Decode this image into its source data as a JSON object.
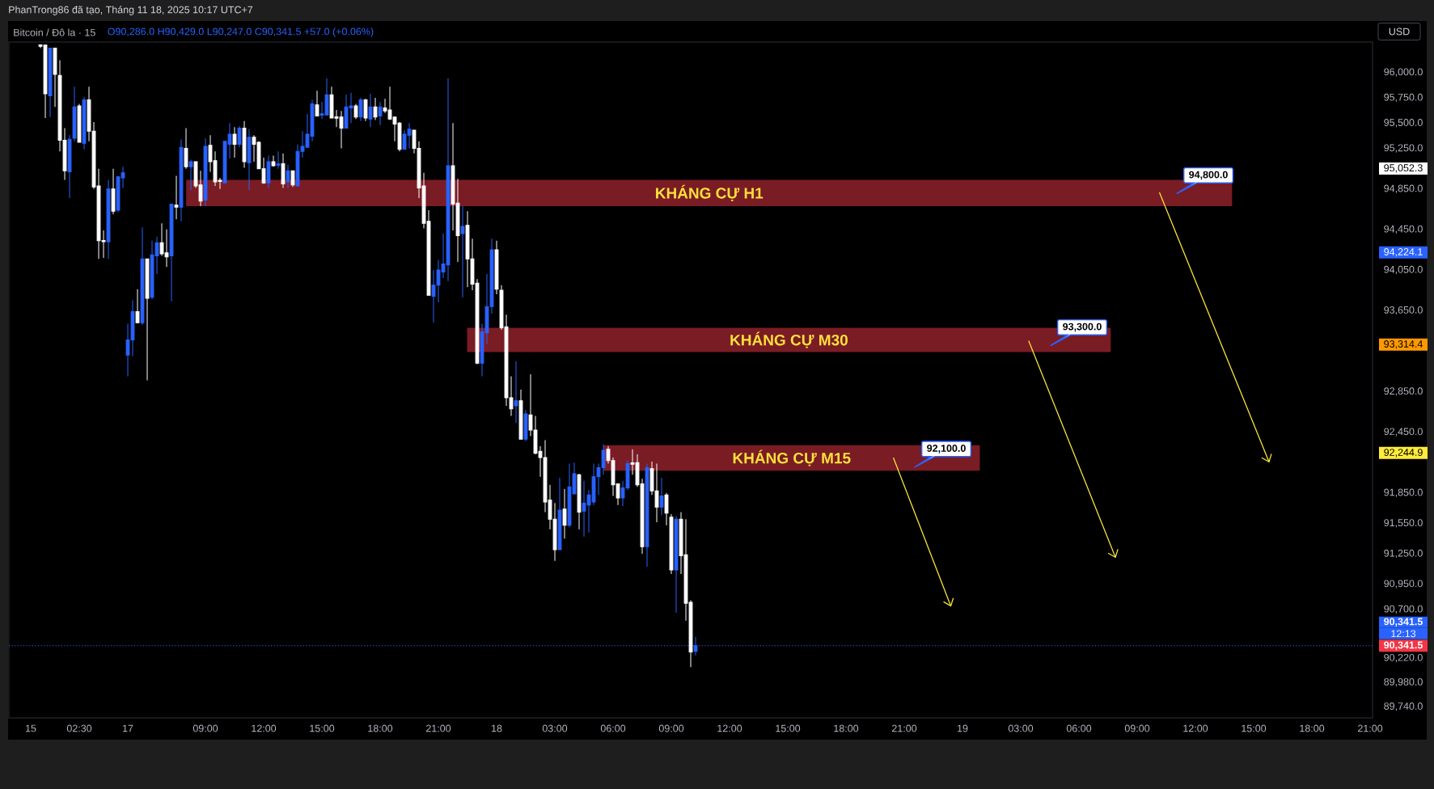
{
  "chart_data": {
    "type": "candlestick",
    "title": "Bitcoin / Đô la · 15",
    "subtitle": "O90,286.0 H90,429.0 L90,247.0 C90,341.5 +57.0 (+0.06%)",
    "annotations": [
      "PhanTrong86 đã tạo, Tháng 11 18, 2025 10:17 UTC+7",
      "USD",
      "95,052.3",
      "94,224.1",
      "93,314.4",
      "92,244.9",
      "12:13",
      "90,341.5",
      "94,800.0",
      "93,300.0",
      "92,100.0"
    ],
    "categories": [
      null,
      null,
      null,
      null,
      "15",
      null,
      null,
      null,
      null,
      null,
      null,
      null,
      null,
      null,
      "02:30",
      null,
      null,
      null,
      null,
      null,
      null,
      null,
      null,
      null,
      "17",
      null,
      null,
      null,
      null,
      null,
      null,
      null,
      null,
      null,
      null,
      null,
      null,
      null,
      null,
      null,
      "09:00",
      null,
      null,
      null,
      null,
      null,
      null,
      null,
      null,
      null,
      null,
      null,
      "12:00",
      null,
      null,
      null,
      null,
      null,
      null,
      null,
      null,
      null,
      null,
      null,
      "15:00",
      null,
      null,
      null,
      null,
      null,
      null,
      null,
      null,
      null,
      null,
      null,
      "18:00",
      null,
      null,
      null,
      null,
      null,
      null,
      null,
      null,
      null,
      null,
      null,
      "21:00",
      null,
      null,
      null,
      null,
      null,
      null,
      null,
      null,
      null,
      null,
      null,
      "18",
      null,
      null,
      null,
      null,
      null,
      null,
      null,
      null,
      null,
      null,
      null,
      "03:00",
      null,
      null,
      null,
      null,
      null,
      null,
      null,
      null,
      null,
      null,
      null,
      "06:00",
      null,
      null,
      null,
      null,
      null,
      null,
      null,
      null,
      null,
      null,
      null,
      "09:00",
      null,
      null,
      null,
      null,
      null,
      null,
      null,
      null,
      null,
      null,
      null,
      "12:00",
      null,
      null,
      null,
      null,
      null,
      null,
      null,
      null,
      null,
      null,
      null,
      "15:00",
      null,
      null,
      null,
      null,
      null,
      null,
      null,
      null,
      null,
      null,
      null,
      "18:00",
      null,
      null,
      null,
      null,
      null,
      null,
      null,
      null,
      null,
      null,
      null,
      "21:00",
      null,
      null,
      null,
      null,
      null,
      null,
      null,
      null,
      null,
      null,
      null,
      "19",
      null,
      null,
      null,
      null,
      null,
      null,
      null,
      null,
      null,
      null,
      null,
      "03:00",
      null,
      null,
      null,
      null,
      null,
      null,
      null,
      null,
      null,
      null,
      null,
      "06:00",
      null,
      null,
      null,
      null,
      null,
      null,
      null,
      null,
      null,
      null,
      null,
      "09:00",
      null,
      null,
      null,
      null,
      null,
      null,
      null,
      null,
      null,
      null,
      null,
      "12:00",
      null,
      null,
      null,
      null,
      null,
      null,
      null,
      null,
      null,
      null,
      null,
      "15:00",
      null,
      null,
      null,
      null,
      null,
      null,
      null,
      null,
      null,
      null,
      null,
      "18:00",
      null,
      null,
      null,
      null,
      null,
      null,
      null,
      null,
      null,
      null,
      null,
      "21:00"
    ],
    "ohlc": [
      null,
      null,
      null,
      null,
      null,
      null,
      [
        96270,
        96270,
        96240,
        96260
      ],
      [
        96270,
        96270,
        95550,
        95790
      ],
      [
        95770,
        96240,
        95560,
        96240
      ],
      [
        96240,
        96240,
        95660,
        95980
      ],
      [
        95970,
        96120,
        95220,
        95330
      ],
      [
        95330,
        95450,
        94940,
        95030
      ],
      [
        95020,
        95380,
        94760,
        95340
      ],
      [
        95350,
        95860,
        95320,
        95660
      ],
      [
        95670,
        95690,
        95310,
        95310
      ],
      [
        95300,
        95760,
        95240,
        95730
      ],
      [
        95730,
        95860,
        95320,
        95420
      ],
      [
        95420,
        95510,
        94850,
        94870
      ],
      [
        94880,
        95050,
        94160,
        94340
      ],
      [
        94340,
        94440,
        94170,
        94330
      ],
      [
        94330,
        94940,
        94160,
        94850
      ],
      [
        94850,
        95050,
        94600,
        94630
      ],
      [
        94640,
        94980,
        94620,
        94970
      ],
      [
        94960,
        95070,
        94860,
        95010
      ],
      [
        93210,
        93520,
        93000,
        93360
      ],
      [
        93360,
        93750,
        93200,
        93640
      ],
      [
        93640,
        93860,
        93530,
        93530
      ],
      [
        93530,
        94470,
        93510,
        94160
      ],
      [
        94160,
        94160,
        92960,
        93770
      ],
      [
        93780,
        94340,
        93760,
        94200
      ],
      [
        94190,
        94380,
        94010,
        94320
      ],
      [
        94320,
        94510,
        94190,
        94210
      ],
      [
        94220,
        94450,
        94080,
        94180
      ],
      [
        94190,
        94700,
        93740,
        94700
      ],
      [
        94690,
        94980,
        94550,
        94670
      ],
      [
        94670,
        95340,
        94530,
        95260
      ],
      [
        95250,
        95450,
        95050,
        95070
      ],
      [
        95070,
        95140,
        94840,
        95120
      ],
      [
        95120,
        95120,
        94860,
        94880
      ],
      [
        94890,
        95030,
        94680,
        94730
      ],
      [
        94740,
        95350,
        94680,
        95270
      ],
      [
        95280,
        95380,
        95020,
        95120
      ],
      [
        95130,
        95220,
        94880,
        94920
      ],
      [
        94930,
        94960,
        94850,
        94930
      ],
      [
        94910,
        95320,
        94910,
        95320
      ],
      [
        95290,
        95500,
        95150,
        95390
      ],
      [
        95390,
        95460,
        95160,
        95290
      ],
      [
        95290,
        95470,
        95260,
        95450
      ],
      [
        95450,
        95520,
        95060,
        95120
      ],
      [
        95110,
        95440,
        94840,
        95360
      ],
      [
        95360,
        95380,
        95120,
        95290
      ],
      [
        95310,
        95320,
        95050,
        95050
      ],
      [
        95050,
        95160,
        94900,
        94910
      ],
      [
        94910,
        95180,
        94860,
        95120
      ],
      [
        95120,
        95180,
        95070,
        95080
      ],
      [
        95090,
        95220,
        95050,
        95090
      ],
      [
        95100,
        95200,
        94860,
        94900
      ],
      [
        94920,
        95090,
        94860,
        95030
      ],
      [
        95030,
        95030,
        94870,
        94890
      ],
      [
        94880,
        95290,
        94880,
        95220
      ],
      [
        95220,
        95420,
        95160,
        95270
      ],
      [
        95260,
        95590,
        95260,
        95390
      ],
      [
        95370,
        95730,
        95320,
        95690
      ],
      [
        95680,
        95820,
        95570,
        95570
      ],
      [
        95580,
        95710,
        95540,
        95590
      ],
      [
        95580,
        95940,
        95580,
        95780
      ],
      [
        95780,
        95860,
        95550,
        95550
      ],
      [
        95560,
        95630,
        95460,
        95550
      ],
      [
        95560,
        95620,
        95250,
        95450
      ],
      [
        95450,
        95780,
        95450,
        95660
      ],
      [
        95650,
        95800,
        95500,
        95670
      ],
      [
        95670,
        95690,
        95540,
        95560
      ],
      [
        95560,
        95750,
        95520,
        95730
      ],
      [
        95730,
        95740,
        95520,
        95550
      ],
      [
        95540,
        95790,
        95460,
        95660
      ],
      [
        95660,
        95750,
        95530,
        95560
      ],
      [
        95570,
        95710,
        95480,
        95660
      ],
      [
        95650,
        95740,
        95600,
        95620
      ],
      [
        95630,
        95860,
        95530,
        95540
      ],
      [
        95560,
        95560,
        95320,
        95490
      ],
      [
        95500,
        95510,
        95220,
        95240
      ],
      [
        95240,
        95430,
        95240,
        95390
      ],
      [
        95380,
        95500,
        95250,
        95440
      ],
      [
        95430,
        95430,
        95200,
        95250
      ],
      [
        95250,
        95320,
        94760,
        94860
      ],
      [
        94880,
        95010,
        94460,
        94510
      ],
      [
        94530,
        94640,
        93800,
        93800
      ],
      [
        93790,
        94050,
        93530,
        93900
      ],
      [
        93900,
        94150,
        93730,
        94050
      ],
      [
        94030,
        94410,
        93970,
        94110
      ],
      [
        94100,
        95940,
        93940,
        95080
      ],
      [
        95080,
        95500,
        94440,
        94700
      ],
      [
        94710,
        94950,
        94130,
        94390
      ],
      [
        94410,
        94680,
        93780,
        94480
      ],
      [
        94490,
        94630,
        93880,
        94160
      ],
      [
        94160,
        94360,
        93850,
        93910
      ],
      [
        93920,
        93960,
        93120,
        93130
      ],
      [
        93130,
        93520,
        93000,
        93440
      ],
      [
        93430,
        94010,
        93320,
        93690
      ],
      [
        93690,
        94360,
        93620,
        94250
      ],
      [
        94250,
        94340,
        93810,
        93860
      ],
      [
        93850,
        93900,
        93460,
        93480
      ],
      [
        93490,
        93610,
        92710,
        92790
      ],
      [
        92790,
        93000,
        92610,
        92680
      ],
      [
        92710,
        93150,
        92540,
        92760
      ],
      [
        92760,
        92870,
        92380,
        92380
      ],
      [
        92380,
        92670,
        92360,
        92630
      ],
      [
        92620,
        93020,
        92410,
        92470
      ],
      [
        92470,
        92610,
        92230,
        92240
      ],
      [
        92260,
        92310,
        92010,
        92200
      ],
      [
        92200,
        92370,
        91660,
        91760
      ],
      [
        91780,
        91930,
        91490,
        91590
      ],
      [
        91590,
        91750,
        91180,
        91290
      ],
      [
        91290,
        92000,
        91290,
        91680
      ],
      [
        91690,
        91890,
        91400,
        91530
      ],
      [
        91530,
        92140,
        91510,
        91910
      ],
      [
        91840,
        92150,
        91840,
        92040
      ],
      [
        92030,
        92040,
        91490,
        91660
      ],
      [
        91670,
        91970,
        91420,
        91750
      ],
      [
        91730,
        91880,
        91460,
        91830
      ],
      [
        91760,
        92140,
        91730,
        92010
      ],
      [
        92010,
        92140,
        91830,
        92100
      ],
      [
        92100,
        92330,
        92030,
        92270
      ],
      [
        92280,
        92310,
        92140,
        92170
      ],
      [
        92170,
        92200,
        91820,
        91930
      ],
      [
        91940,
        91940,
        91730,
        91800
      ],
      [
        91800,
        91970,
        91720,
        91900
      ],
      [
        91900,
        92170,
        91880,
        92140
      ],
      [
        92140,
        92280,
        92030,
        92140
      ],
      [
        92150,
        92230,
        91910,
        91930
      ],
      [
        91940,
        91990,
        91250,
        91320
      ],
      [
        91320,
        92140,
        91120,
        92100
      ],
      [
        92090,
        92160,
        91830,
        91870
      ],
      [
        91870,
        92140,
        91560,
        91710
      ],
      [
        91710,
        92000,
        91630,
        91820
      ],
      [
        91830,
        91850,
        91530,
        91650
      ],
      [
        91610,
        91640,
        91050,
        91090
      ],
      [
        91090,
        91620,
        90670,
        91590
      ],
      [
        91590,
        91660,
        91050,
        91230
      ],
      [
        91240,
        91590,
        90590,
        90760
      ],
      [
        90770,
        90790,
        90130,
        90280
      ],
      [
        90286.0,
        90429.0,
        90247.0,
        90341.5
      ],
      null,
      null,
      null,
      null,
      null,
      null,
      null,
      null,
      null,
      null,
      null,
      null,
      null,
      null,
      null,
      null,
      null,
      null,
      null,
      null,
      null,
      null,
      null,
      null,
      null,
      null,
      null,
      null,
      null,
      null,
      null,
      null,
      null,
      null,
      null,
      null,
      null,
      null,
      null,
      null,
      null,
      null,
      null,
      null,
      null,
      null,
      null,
      null,
      null,
      null,
      null,
      null,
      null,
      null,
      null,
      null,
      null,
      null,
      null,
      null,
      null,
      null,
      null,
      null,
      null,
      null,
      null,
      null,
      null,
      null,
      null,
      null,
      null,
      null,
      null,
      null,
      null,
      null,
      null,
      null,
      null,
      null,
      null,
      null,
      null,
      null,
      null,
      null,
      null,
      null,
      null,
      null,
      null,
      null,
      null,
      null,
      null,
      null,
      null,
      null,
      null,
      null,
      null,
      null,
      null,
      null,
      null,
      null,
      null,
      null,
      null,
      null,
      null,
      null,
      null,
      null,
      null,
      null,
      null,
      null,
      null,
      null,
      null,
      null,
      null,
      null,
      null,
      null,
      null,
      null,
      null,
      null,
      null,
      null,
      null,
      null,
      null,
      null,
      null
    ],
    "colors": [
      null,
      null,
      null,
      null,
      null,
      null,
      "#ffffff",
      "#ffffff",
      "#2962ff",
      "#ffffff",
      "#ffffff",
      "#ffffff",
      "#2962ff",
      "#2962ff",
      "#ffffff",
      "#2962ff",
      "#ffffff",
      "#ffffff",
      "#ffffff",
      "#ffffff",
      "#2962ff",
      "#ffffff",
      "#2962ff",
      "#2962ff",
      "#2962ff",
      "#2962ff",
      "#ffffff",
      "#2962ff",
      "#ffffff",
      "#2962ff",
      "#2962ff",
      "#ffffff",
      "#ffffff",
      "#2962ff",
      "#ffffff",
      "#2962ff",
      "#ffffff",
      "#2962ff",
      "#ffffff",
      "#ffffff",
      "#2962ff",
      "#ffffff",
      "#ffffff",
      "#ffffff",
      "#2962ff",
      "#2962ff",
      "#ffffff",
      "#2962ff",
      "#ffffff",
      "#2962ff",
      "#ffffff",
      "#ffffff",
      "#ffffff",
      "#2962ff",
      "#ffffff",
      "#2962ff",
      "#ffffff",
      "#2962ff",
      "#ffffff",
      "#2962ff",
      "#2962ff",
      "#2962ff",
      "#2962ff",
      "#ffffff",
      "#2962ff",
      "#2962ff",
      "#ffffff",
      "#ffffff",
      "#ffffff",
      "#2962ff",
      "#2962ff",
      "#ffffff",
      "#2962ff",
      "#ffffff",
      "#2962ff",
      "#ffffff",
      "#2962ff",
      "#ffffff",
      "#ffffff",
      "#ffffff",
      "#ffffff",
      "#2962ff",
      "#2962ff",
      "#ffffff",
      "#ffffff",
      "#ffffff",
      "#ffffff",
      "#2962ff",
      "#2962ff",
      "#2962ff",
      "#2962ff",
      "#ffffff",
      "#ffffff",
      "#2962ff",
      "#ffffff",
      "#ffffff",
      "#ffffff",
      "#2962ff",
      "#2962ff",
      "#2962ff",
      "#ffffff",
      "#ffffff",
      "#ffffff",
      "#ffffff",
      "#2962ff",
      "#ffffff",
      "#2962ff",
      "#ffffff",
      "#ffffff",
      "#ffffff",
      "#ffffff",
      "#ffffff",
      "#ffffff",
      "#2962ff",
      "#ffffff",
      "#2962ff",
      "#2962ff",
      "#ffffff",
      "#2962ff",
      "#2962ff",
      "#2962ff",
      "#2962ff",
      "#2962ff",
      "#ffffff",
      "#ffffff",
      "#ffffff",
      "#2962ff",
      "#2962ff",
      "#ffffff",
      "#ffffff",
      "#ffffff",
      "#2962ff",
      "#ffffff",
      "#ffffff",
      "#2962ff",
      "#ffffff",
      "#ffffff",
      "#2962ff",
      "#ffffff",
      "#ffffff",
      "#ffffff",
      "#2962ff",
      null,
      null,
      null,
      null,
      null,
      null,
      null,
      null,
      null,
      null,
      null,
      null,
      null,
      null,
      null,
      null,
      null,
      null,
      null,
      null,
      null,
      null,
      null,
      null,
      null,
      null,
      null,
      null,
      null,
      null,
      null,
      null,
      null,
      null,
      null,
      null,
      null,
      null,
      null,
      null,
      null,
      null,
      null,
      null,
      null,
      null,
      null,
      null,
      null,
      null,
      null,
      null,
      null,
      null,
      null,
      null,
      null,
      null,
      null,
      null,
      null,
      null,
      null,
      null,
      null,
      null,
      null,
      null,
      null,
      null,
      null,
      null,
      null,
      null,
      null,
      null,
      null,
      null,
      null,
      null,
      null,
      null,
      null,
      null,
      null,
      null,
      null,
      null,
      null,
      null,
      null,
      null,
      null,
      null,
      null,
      null,
      null,
      null,
      null,
      null,
      null,
      null,
      null,
      null,
      null,
      null,
      null,
      null,
      null,
      null,
      null,
      null,
      null,
      null,
      null,
      null,
      null,
      null,
      null,
      null,
      null,
      null,
      null,
      null,
      null,
      null,
      null,
      null,
      null,
      null,
      null,
      null,
      null,
      null,
      null,
      null,
      null,
      null,
      null
    ],
    "bands": [
      {
        "axis": "y",
        "from": 94680,
        "to": 94940,
        "label": "KHÁNG CỰ H1",
        "color": "#7a1c24"
      },
      {
        "axis": "y",
        "from": 93240,
        "to": 93480,
        "label": "KHÁNG CỰ M30",
        "color": "#7a1c24"
      },
      {
        "axis": "y",
        "from": 92070,
        "to": 92320,
        "label": "KHÁNG CỰ M15",
        "color": "#7a1c24"
      }
    ],
    "ref_lines": [
      {
        "axis": "y",
        "value": 90341.5,
        "label": "90,341.5",
        "color": "#2962ff",
        "line_style": "dotted"
      }
    ],
    "ylim": [
      89630,
      96300
    ],
    "yticks": [
      {
        "value": 96000,
        "label": "96,000.0"
      },
      {
        "value": 95750,
        "label": "95,750.0"
      },
      {
        "value": 95500,
        "label": "95,500.0"
      },
      {
        "value": 95250,
        "label": "95,250.0"
      },
      {
        "value": 94850,
        "label": "94,850.0"
      },
      {
        "value": 94450,
        "label": "94,450.0"
      },
      {
        "value": 94050,
        "label": "94,050.0"
      },
      {
        "value": 93650,
        "label": "93,650.0"
      },
      {
        "value": 92850,
        "label": "92,850.0"
      },
      {
        "value": 92450,
        "label": "92,450.0"
      },
      {
        "value": 91850,
        "label": "91,850.0"
      },
      {
        "value": 91550,
        "label": "91,550.0"
      },
      {
        "value": 91250,
        "label": "91,250.0"
      },
      {
        "value": 90950,
        "label": "90,950.0"
      },
      {
        "value": 90700,
        "label": "90,700.0"
      },
      {
        "value": 90220,
        "label": "90,220.0"
      },
      {
        "value": 89980,
        "label": "89,980.0"
      },
      {
        "value": 89740,
        "label": "89,740.0"
      }
    ]
  }
}
